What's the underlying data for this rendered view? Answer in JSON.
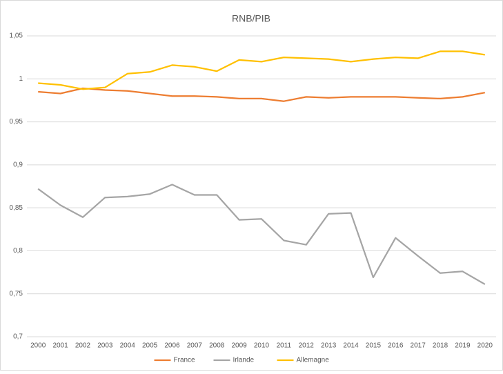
{
  "chart_data": {
    "type": "line",
    "title": "RNB/PIB",
    "categories": [
      "2000",
      "2001",
      "2002",
      "2003",
      "2004",
      "2005",
      "2006",
      "2007",
      "2008",
      "2009",
      "2010",
      "2011",
      "2012",
      "2013",
      "2014",
      "2015",
      "2016",
      "2017",
      "2018",
      "2019",
      "2020"
    ],
    "series": [
      {
        "name": "France",
        "color": "#ed7d31",
        "values": [
          0.985,
          0.983,
          0.989,
          0.987,
          0.986,
          0.983,
          0.98,
          0.98,
          0.979,
          0.977,
          0.977,
          0.974,
          0.979,
          0.978,
          0.979,
          0.979,
          0.979,
          0.978,
          0.977,
          0.979,
          0.984
        ]
      },
      {
        "name": "Irlande",
        "color": "#a5a5a5",
        "values": [
          0.872,
          0.853,
          0.839,
          0.862,
          0.863,
          0.866,
          0.877,
          0.865,
          0.865,
          0.836,
          0.837,
          0.812,
          0.807,
          0.843,
          0.844,
          0.769,
          0.815,
          0.794,
          0.774,
          0.776,
          0.761
        ]
      },
      {
        "name": "Allemagne",
        "color": "#ffc000",
        "values": [
          0.995,
          0.993,
          0.988,
          0.99,
          1.006,
          1.008,
          1.016,
          1.014,
          1.009,
          1.022,
          1.02,
          1.025,
          1.024,
          1.023,
          1.02,
          1.023,
          1.025,
          1.024,
          1.032,
          1.032,
          1.028
        ]
      }
    ],
    "ylim": [
      0.7,
      1.05
    ],
    "yticks": [
      {
        "value": 0.7,
        "label": "0,7"
      },
      {
        "value": 0.75,
        "label": "0,75"
      },
      {
        "value": 0.8,
        "label": "0,8"
      },
      {
        "value": 0.85,
        "label": "0,85"
      },
      {
        "value": 0.9,
        "label": "0,9"
      },
      {
        "value": 0.95,
        "label": "0,95"
      },
      1,
      {
        "value": 1.05,
        "label": "1,05"
      }
    ],
    "grid": true,
    "legend": "bottom"
  }
}
